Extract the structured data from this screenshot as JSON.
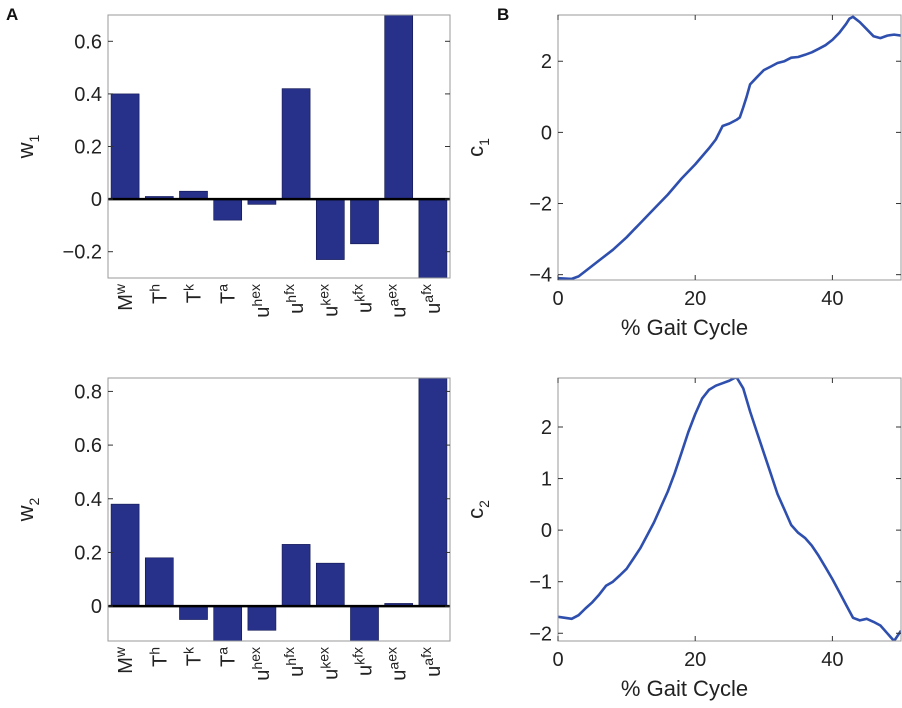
{
  "panels": {
    "a": "A",
    "b": "B"
  },
  "colors": {
    "bar": "#27318a",
    "line": "#2e4fae",
    "axis": "#333333",
    "zero": "#000000"
  },
  "chart_data": [
    {
      "id": "w1",
      "type": "bar",
      "ylabel_main": "w",
      "ylabel_sub": "1",
      "ylim": [
        -0.3,
        0.7
      ],
      "yticks": [
        -0.2,
        0,
        0.2,
        0.4,
        0.6
      ],
      "ytick_labels": [
        "−0.2",
        "0",
        "0.2",
        "0.4",
        "0.6"
      ],
      "categories": [
        {
          "main": "M",
          "sub": "w",
          "sup": ""
        },
        {
          "main": "T",
          "sub": "h",
          "sup": ""
        },
        {
          "main": "T",
          "sub": "k",
          "sup": ""
        },
        {
          "main": "T",
          "sub": "a",
          "sup": ""
        },
        {
          "main": "u",
          "sub": "h",
          "sup": "ex"
        },
        {
          "main": "u",
          "sub": "h",
          "sup": "fx"
        },
        {
          "main": "u",
          "sub": "k",
          "sup": "ex"
        },
        {
          "main": "u",
          "sub": "k",
          "sup": "fx"
        },
        {
          "main": "u",
          "sub": "a",
          "sup": "ex"
        },
        {
          "main": "u",
          "sub": "a",
          "sup": "fx"
        }
      ],
      "values": [
        0.4,
        0.01,
        0.03,
        -0.08,
        -0.02,
        0.42,
        -0.23,
        -0.17,
        0.7,
        -0.3
      ]
    },
    {
      "id": "c1",
      "type": "line",
      "ylabel_main": "c",
      "ylabel_sub": "1",
      "xlabel": "% Gait Cycle",
      "xlim": [
        0,
        50
      ],
      "ylim": [
        -4.15,
        3.3
      ],
      "xticks": [
        0,
        20,
        40
      ],
      "xtick_labels": [
        "0",
        "20",
        "40"
      ],
      "yticks": [
        -4,
        -2,
        0,
        2
      ],
      "ytick_labels": [
        "−4",
        "−2",
        "0",
        "2"
      ],
      "x": [
        0,
        2,
        3,
        4,
        6,
        8,
        10,
        12,
        14,
        16,
        18,
        20,
        22,
        23,
        24,
        25,
        26,
        26.5,
        27,
        27.5,
        28,
        29,
        30,
        31,
        32,
        33,
        34,
        35,
        36,
        37,
        38,
        39,
        40,
        41,
        42,
        42.5,
        43,
        44,
        45,
        46,
        47,
        48,
        49,
        50
      ],
      "y": [
        -4.1,
        -4.12,
        -4.05,
        -3.9,
        -3.6,
        -3.3,
        -2.95,
        -2.55,
        -2.15,
        -1.75,
        -1.3,
        -0.9,
        -0.45,
        -0.2,
        0.18,
        0.25,
        0.35,
        0.42,
        0.7,
        1.0,
        1.35,
        1.55,
        1.75,
        1.85,
        1.95,
        2.0,
        2.1,
        2.12,
        2.18,
        2.25,
        2.35,
        2.45,
        2.6,
        2.8,
        3.05,
        3.2,
        3.25,
        3.1,
        2.9,
        2.7,
        2.65,
        2.72,
        2.75,
        2.72
      ]
    },
    {
      "id": "w2",
      "type": "bar",
      "ylabel_main": "w",
      "ylabel_sub": "2",
      "ylim": [
        -0.13,
        0.85
      ],
      "yticks": [
        0,
        0.2,
        0.4,
        0.6,
        0.8
      ],
      "ytick_labels": [
        "0",
        "0.2",
        "0.4",
        "0.6",
        "0.8"
      ],
      "categories": [
        {
          "main": "M",
          "sub": "w",
          "sup": ""
        },
        {
          "main": "T",
          "sub": "h",
          "sup": ""
        },
        {
          "main": "T",
          "sub": "k",
          "sup": ""
        },
        {
          "main": "T",
          "sub": "a",
          "sup": ""
        },
        {
          "main": "u",
          "sub": "h",
          "sup": "ex"
        },
        {
          "main": "u",
          "sub": "h",
          "sup": "fx"
        },
        {
          "main": "u",
          "sub": "k",
          "sup": "ex"
        },
        {
          "main": "u",
          "sub": "k",
          "sup": "fx"
        },
        {
          "main": "u",
          "sub": "a",
          "sup": "ex"
        },
        {
          "main": "u",
          "sub": "a",
          "sup": "fx"
        }
      ],
      "values": [
        0.38,
        0.18,
        -0.05,
        -0.13,
        -0.09,
        0.23,
        0.16,
        -0.13,
        0.01,
        0.85
      ]
    },
    {
      "id": "c2",
      "type": "line",
      "ylabel_main": "c",
      "ylabel_sub": "2",
      "xlabel": "% Gait Cycle",
      "xlim": [
        0,
        50
      ],
      "ylim": [
        -2.15,
        2.95
      ],
      "xticks": [
        0,
        20,
        40
      ],
      "xtick_labels": [
        "0",
        "20",
        "40"
      ],
      "yticks": [
        -2,
        -1,
        0,
        1,
        2
      ],
      "ytick_labels": [
        "−2",
        "−1",
        "0",
        "1",
        "2"
      ],
      "x": [
        0,
        1,
        2,
        3,
        4,
        5,
        6,
        7,
        8,
        9,
        10,
        11,
        12,
        13,
        14,
        15,
        16,
        17,
        18,
        19,
        20,
        21,
        22,
        23,
        24,
        25,
        26,
        27,
        28,
        29,
        30,
        31,
        32,
        33,
        34,
        35,
        36,
        37,
        38,
        39,
        40,
        41,
        42,
        43,
        44,
        45,
        46,
        47,
        48,
        49,
        50
      ],
      "y": [
        -1.68,
        -1.7,
        -1.72,
        -1.65,
        -1.52,
        -1.4,
        -1.25,
        -1.08,
        -1.0,
        -0.88,
        -0.75,
        -0.55,
        -0.35,
        -0.1,
        0.15,
        0.45,
        0.75,
        1.1,
        1.5,
        1.9,
        2.25,
        2.55,
        2.72,
        2.8,
        2.85,
        2.9,
        2.97,
        2.75,
        2.3,
        1.9,
        1.5,
        1.1,
        0.7,
        0.4,
        0.1,
        -0.05,
        -0.15,
        -0.3,
        -0.5,
        -0.72,
        -0.95,
        -1.2,
        -1.45,
        -1.7,
        -1.75,
        -1.72,
        -1.78,
        -1.85,
        -2.0,
        -2.15,
        -1.95
      ]
    }
  ]
}
